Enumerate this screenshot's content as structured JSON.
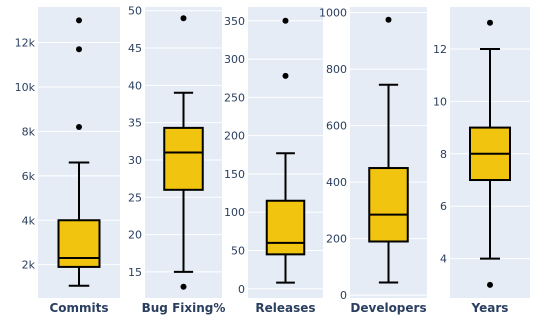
{
  "chart_data": [
    {
      "type": "box",
      "xlabel": "Commits",
      "ylim": [
        500,
        13600
      ],
      "ticks": [
        2000,
        4000,
        6000,
        8000,
        10000,
        12000
      ],
      "tick_labels": [
        "2k",
        "4k",
        "6k",
        "8k",
        "10k",
        "12k"
      ],
      "whisker_low": 1050,
      "q1": 1900,
      "median": 2300,
      "q3": 4000,
      "whisker_high": 6600,
      "outliers": [
        8200,
        11700,
        13000
      ],
      "box_color": "#f1c40f"
    },
    {
      "type": "box",
      "xlabel": "Bug Fixing%",
      "ylim": [
        11.5,
        50.5
      ],
      "ticks": [
        15,
        20,
        25,
        30,
        35,
        40,
        45,
        50
      ],
      "tick_labels": [
        "15",
        "20",
        "25",
        "30",
        "35",
        "40",
        "45",
        "50"
      ],
      "whisker_low": 15,
      "q1": 26,
      "median": 31,
      "q3": 34.3,
      "whisker_high": 39,
      "outliers": [
        13,
        49
      ],
      "box_color": "#f1c40f"
    },
    {
      "type": "box",
      "xlabel": "Releases",
      "ylim": [
        -12,
        368
      ],
      "ticks": [
        0,
        50,
        100,
        150,
        200,
        250,
        300,
        350
      ],
      "tick_labels": [
        "0",
        "50",
        "100",
        "150",
        "200",
        "250",
        "300",
        "350"
      ],
      "whisker_low": 8,
      "q1": 45,
      "median": 60,
      "q3": 115,
      "whisker_high": 177,
      "outliers": [
        278,
        350
      ],
      "box_color": "#f1c40f"
    },
    {
      "type": "box",
      "xlabel": "Developers",
      "ylim": [
        -10,
        1020
      ],
      "ticks": [
        0,
        200,
        400,
        600,
        800,
        1000
      ],
      "tick_labels": [
        "0",
        "200",
        "400",
        "600",
        "800",
        "1000"
      ],
      "whisker_low": 45,
      "q1": 190,
      "median": 285,
      "q3": 450,
      "whisker_high": 745,
      "outliers": [
        975
      ],
      "box_color": "#f1c40f"
    },
    {
      "type": "box",
      "xlabel": "Years",
      "ylim": [
        2.5,
        13.6
      ],
      "ticks": [
        4,
        6,
        8,
        10,
        12
      ],
      "tick_labels": [
        "4",
        "6",
        "8",
        "10",
        "12"
      ],
      "whisker_low": 4,
      "q1": 7,
      "median": 8,
      "q3": 9,
      "whisker_high": 12,
      "outliers": [
        3,
        13
      ],
      "box_color": "#f1c40f"
    }
  ]
}
